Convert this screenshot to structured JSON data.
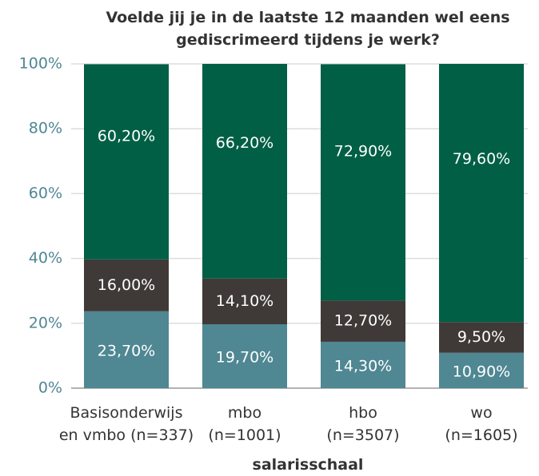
{
  "chart_data": {
    "type": "stacked_bar",
    "title": "Voelde jij je in de laatste 12 maanden wel eens\ngediscrimeerd tijdens je werk?",
    "x_label": "salarisschaal",
    "categories": [
      "Basisonderwijs\nen vmbo (n=337)",
      "mbo\n(n=1001)",
      "hbo\n(n=3507)",
      "wo\n(n=1605)"
    ],
    "series": [
      {
        "color": "#4f8793",
        "values": [
          23.7,
          19.7,
          14.3,
          10.9
        ],
        "value_labels": [
          "23,70%",
          "19,70%",
          "14,30%",
          "10,90%"
        ]
      },
      {
        "color": "#3f3a37",
        "values": [
          16.0,
          14.1,
          12.7,
          9.5
        ],
        "value_labels": [
          "16,00%",
          "14,10%",
          "12,70%",
          "9,50%"
        ]
      },
      {
        "color": "#005f45",
        "values": [
          60.2,
          66.2,
          72.9,
          79.6
        ],
        "value_labels": [
          "60,20%",
          "66,20%",
          "72,90%",
          "79,60%"
        ]
      }
    ],
    "ylim": [
      0,
      100
    ],
    "yticks": [
      {
        "value": 0,
        "label": "0%"
      },
      {
        "value": 20,
        "label": "20%"
      },
      {
        "value": 40,
        "label": "40%"
      },
      {
        "value": 60,
        "label": "60%"
      },
      {
        "value": 80,
        "label": "80%"
      },
      {
        "value": 100,
        "label": "100%"
      }
    ],
    "grid": true
  }
}
